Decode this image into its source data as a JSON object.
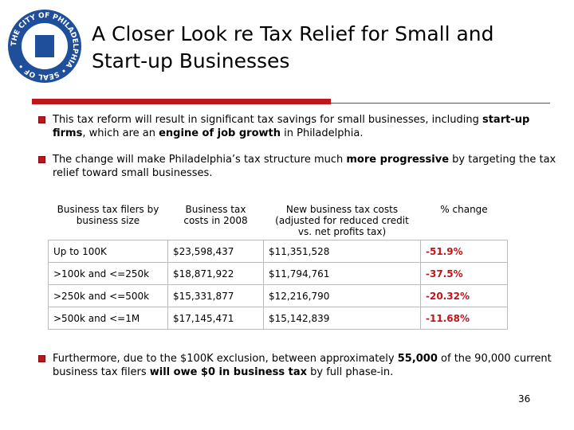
{
  "seal_text": "THE CITY OF PHILADELPHIA • SEAL OF •",
  "title": [
    "A Closer Look re Tax Relief for Small and",
    "Start-up Businesses"
  ],
  "bullets": [
    [
      {
        "text": "This tax reform will result in significant tax savings for small businesses, including "
      },
      {
        "text": "start-up firms",
        "bold": true
      },
      {
        "text": ", which are an "
      },
      {
        "text": "engine of job growth",
        "bold": true
      },
      {
        "text": " in Philadelphia."
      }
    ],
    [
      {
        "text": "The change will make Philadelphia’s tax structure much "
      },
      {
        "text": "more progressive",
        "bold": true
      },
      {
        "text": " by targeting the tax relief toward small businesses."
      }
    ],
    [
      {
        "text": "Furthermore, due to the $100K exclusion, between approximately "
      },
      {
        "text": "55,000",
        "bold": true
      },
      {
        "text": " of the 90,000 current business tax filers "
      },
      {
        "text": "will owe $0 in business tax",
        "bold": true
      },
      {
        "text": " by full phase-in."
      }
    ]
  ],
  "table": {
    "columns": [
      "Business tax filers by business size",
      "Business tax costs in 2008",
      "New business tax costs (adjusted for reduced credit vs. net profits tax)",
      "% change"
    ],
    "rows": [
      [
        "Up to 100K",
        "$23,598,437",
        "$11,351,528",
        "-51.9%"
      ],
      [
        ">100k and <=250k",
        "$18,871,922",
        "$11,794,761",
        "-37.5%"
      ],
      [
        ">250k and <=500k",
        "$15,331,877",
        "$12,216,790",
        "-20.32%"
      ],
      [
        ">500k and <=1M",
        "$17,145,471",
        "$15,142,839",
        "-11.68%"
      ]
    ]
  },
  "page_number": "36"
}
